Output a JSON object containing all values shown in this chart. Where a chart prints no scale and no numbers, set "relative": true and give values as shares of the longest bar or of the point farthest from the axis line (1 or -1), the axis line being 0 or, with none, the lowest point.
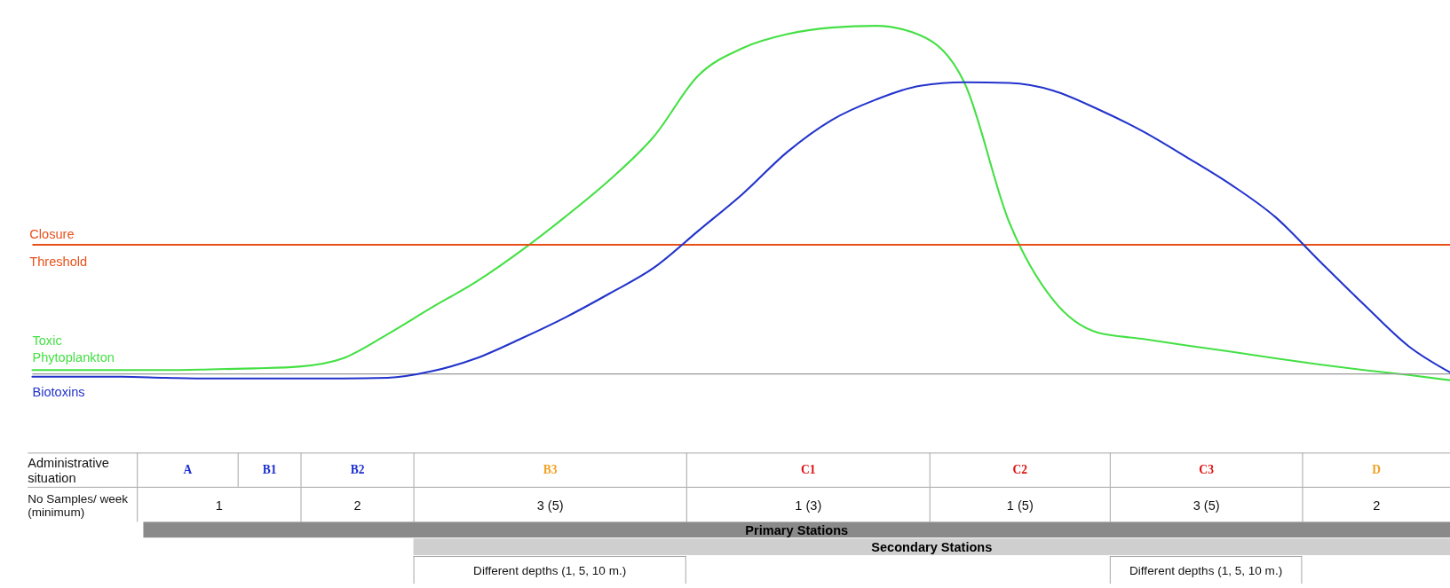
{
  "chart_data": {
    "type": "line",
    "relative": true,
    "tick_labels": false,
    "legend": false,
    "categories": [
      null,
      null,
      null,
      null,
      null,
      null,
      null,
      null,
      null,
      null,
      null,
      null,
      null,
      null,
      null,
      null,
      null,
      null,
      null,
      null,
      null,
      null,
      null,
      null,
      null,
      null,
      null,
      null,
      null,
      null,
      null,
      null,
      null
    ],
    "series": [
      {
        "name": "Toxic Phytoplankton",
        "color": "#44e044",
        "values": [
          0.011,
          0.011,
          0.011,
          0.011,
          0.013,
          0.016,
          0.021,
          0.045,
          0.114,
          0.191,
          0.265,
          0.353,
          0.451,
          0.557,
          0.682,
          0.857,
          0.936,
          0.976,
          0.995,
          1,
          0.973,
          0.836,
          0.438,
          0.212,
          0.119,
          0.101,
          0.082,
          0.064,
          0.045,
          0.027,
          0.011,
          -0.003,
          -0.019
        ]
      },
      {
        "name": "Biotoxins",
        "color": "#2233cc",
        "values": [
          -0.008,
          -0.008,
          -0.008,
          -0.011,
          -0.013,
          -0.013,
          -0.013,
          -0.013,
          -0.011,
          0.008,
          0.045,
          0.101,
          0.162,
          0.231,
          0.305,
          0.411,
          0.517,
          0.637,
          0.729,
          0.788,
          0.828,
          0.838,
          0.836,
          0.814,
          0.761,
          0.698,
          0.623,
          0.544,
          0.451,
          0.324,
          0.199,
          0.08,
          0
        ]
      }
    ],
    "ref_lines": [
      {
        "axis": "y",
        "value": 0.371,
        "label": "Closure Threshold",
        "color": "#e8501a"
      }
    ],
    "annotations": [
      "Administrative situation",
      "A",
      "B1",
      "B2",
      "B3",
      "C1",
      "C2",
      "C3",
      "D",
      "No Samples/ week (minimum)",
      "1",
      "2",
      "3 (5)",
      "1 (3)",
      "1 (5)",
      "3 (5)",
      "2",
      "Primary Stations",
      "Secondary Stations",
      "Different depths (1, 5, 10 m.)",
      "Different depths (1, 5, 10 m.)"
    ]
  }
}
